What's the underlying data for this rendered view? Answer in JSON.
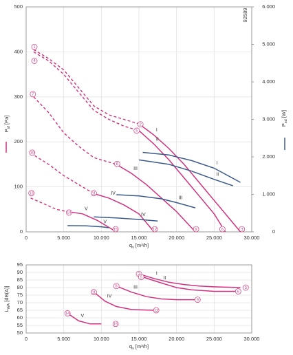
{
  "chart_data": [
    {
      "type": "line",
      "code": "92589",
      "xlabel": [
        "q",
        "v",
        " [m³/h]"
      ],
      "ylabel": [
        "P",
        "sf",
        " [Pa]"
      ],
      "y2label": [
        "P",
        "sd",
        " [W]"
      ],
      "xlim": [
        0,
        30000
      ],
      "xticks": [
        0,
        {
          "value": 5000,
          "label": "5.000"
        },
        {
          "value": 10000,
          "label": "10.000"
        },
        {
          "value": 15000,
          "label": "15.000"
        },
        {
          "value": 20000,
          "label": "20.000"
        },
        {
          "value": 25000,
          "label": "25.000"
        },
        {
          "value": 30000,
          "label": "30.000"
        }
      ],
      "ylim": [
        0,
        500
      ],
      "yticks": [
        0,
        100,
        200,
        300,
        400,
        500
      ],
      "y2lim": [
        0,
        6000
      ],
      "y2ticks": [
        0,
        {
          "value": 1000,
          "label": "1.000"
        },
        {
          "value": 2000,
          "label": "2.000"
        },
        {
          "value": 3000,
          "label": "3.000"
        },
        {
          "value": 4000,
          "label": "4.000"
        },
        {
          "value": 5000,
          "label": "5.000"
        },
        {
          "value": 6000,
          "label": "6.000"
        }
      ],
      "grid": true,
      "series": [
        {
          "name": "I",
          "color": "#d1317e",
          "stall_x": [
            1000,
            3000,
            5000,
            7000,
            9000,
            11000,
            13000,
            15000
          ],
          "stall_values": [
            405,
            385,
            360,
            320,
            280,
            260,
            250,
            240
          ],
          "x": [
            15000,
            17000,
            19000,
            21000,
            23000,
            25000,
            27000,
            28500
          ],
          "values": [
            240,
            215,
            185,
            150,
            110,
            70,
            30,
            0
          ]
        },
        {
          "name": "II",
          "color": "#d1317e",
          "stall_x": [
            1000,
            3000,
            5000,
            7000,
            9000,
            11000,
            13000,
            15000
          ],
          "stall_values": [
            400,
            380,
            350,
            310,
            270,
            250,
            235,
            225
          ],
          "x": [
            15000,
            17000,
            19000,
            21000,
            23000,
            25000,
            26500
          ],
          "values": [
            225,
            195,
            160,
            120,
            80,
            40,
            0
          ]
        },
        {
          "name": "III",
          "color": "#d1317e",
          "stall_x": [
            1000,
            3000,
            5000,
            7000,
            9000,
            12000
          ],
          "stall_values": [
            300,
            265,
            220,
            190,
            165,
            150
          ],
          "x": [
            12000,
            14000,
            16000,
            18000,
            20000,
            22500
          ],
          "values": [
            150,
            130,
            105,
            75,
            45,
            0
          ]
        },
        {
          "name": "IV",
          "color": "#d1317e",
          "stall_x": [
            600,
            3000,
            5000,
            7000,
            9000
          ],
          "stall_values": [
            175,
            150,
            125,
            105,
            85
          ],
          "x": [
            9000,
            11000,
            13000,
            15000,
            17000
          ],
          "values": [
            85,
            75,
            60,
            40,
            0
          ]
        },
        {
          "name": "V",
          "color": "#d1317e",
          "stall_x": [
            600,
            2000,
            4000,
            5500
          ],
          "stall_values": [
            75,
            65,
            50,
            45
          ],
          "x": [
            5500,
            7500,
            9500,
            11000,
            12000
          ],
          "values": [
            45,
            40,
            25,
            10,
            0
          ]
        },
        {
          "name": "I",
          "color": "#3a5a8c",
          "axis": "y2",
          "x": [
            15500,
            19000,
            22000,
            25000,
            28500
          ],
          "values": [
            2120,
            2050,
            1900,
            1700,
            1320
          ]
        },
        {
          "name": "II",
          "color": "#3a5a8c",
          "axis": "y2",
          "x": [
            15000,
            19000,
            22000,
            25000,
            27500
          ],
          "values": [
            1920,
            1800,
            1620,
            1400,
            1230
          ]
        },
        {
          "name": "III",
          "color": "#3a5a8c",
          "axis": "y2",
          "x": [
            12000,
            15000,
            18000,
            20000,
            22500
          ],
          "values": [
            990,
            960,
            880,
            780,
            640
          ]
        },
        {
          "name": "IV",
          "color": "#3a5a8c",
          "axis": "y2",
          "x": [
            9000,
            12000,
            15000,
            17500
          ],
          "values": [
            400,
            370,
            330,
            290
          ]
        },
        {
          "name": "V",
          "color": "#3a5a8c",
          "axis": "y2",
          "x": [
            5500,
            8000,
            10000,
            11000
          ],
          "values": [
            165,
            160,
            135,
            110
          ]
        }
      ],
      "points": [
        {
          "label": "1",
          "x": 1100,
          "y": 411
        },
        {
          "label": "4",
          "x": 1100,
          "y": 380
        },
        {
          "label": "7",
          "x": 900,
          "y": 306
        },
        {
          "label": "10",
          "x": 800,
          "y": 176
        },
        {
          "label": "13",
          "x": 700,
          "y": 86
        },
        {
          "label": "2",
          "x": 15200,
          "y": 239
        },
        {
          "label": "5",
          "x": 14700,
          "y": 225
        },
        {
          "label": "8",
          "x": 12100,
          "y": 151
        },
        {
          "label": "11",
          "x": 9000,
          "y": 86
        },
        {
          "label": "14",
          "x": 5700,
          "y": 43
        },
        {
          "label": "3",
          "x": 28700,
          "y": 6
        },
        {
          "label": "6",
          "x": 26100,
          "y": 6
        },
        {
          "label": "9",
          "x": 22600,
          "y": 6
        },
        {
          "label": "12",
          "x": 17100,
          "y": 6
        },
        {
          "label": "15",
          "x": 11900,
          "y": 6
        }
      ]
    },
    {
      "type": "line",
      "xlabel": [
        "q",
        "v",
        " [m³/h]"
      ],
      "ylabel": [
        "L",
        "WA",
        " [dB(A)]"
      ],
      "xlim": [
        0,
        30000
      ],
      "xticks": [
        0,
        {
          "value": 5000,
          "label": "5.000"
        },
        {
          "value": 10000,
          "label": "10.000"
        },
        {
          "value": 15000,
          "label": "15.000"
        },
        {
          "value": 20000,
          "label": "20.000"
        },
        {
          "value": 25000,
          "label": "25.000"
        },
        {
          "value": 30000,
          "label": "30.000"
        }
      ],
      "ylim": [
        50,
        95
      ],
      "yticks": [
        50,
        55,
        60,
        65,
        70,
        75,
        80,
        85,
        90,
        95
      ],
      "grid": true,
      "series": [
        {
          "name": "I",
          "color": "#d1317e",
          "x": [
            15000,
            17000,
            19000,
            21000,
            23000,
            25000,
            28500
          ],
          "values": [
            89,
            86,
            83.5,
            82,
            81,
            80.5,
            80
          ]
        },
        {
          "name": "II",
          "color": "#d1317e",
          "x": [
            15500,
            18000,
            20000,
            22000,
            25000,
            28000
          ],
          "values": [
            87,
            83,
            80,
            78.5,
            77.5,
            77.5
          ]
        },
        {
          "name": "III",
          "color": "#d1317e",
          "x": [
            12000,
            14000,
            16000,
            18000,
            20000,
            22500
          ],
          "values": [
            81,
            77,
            74,
            72.5,
            72,
            72
          ]
        },
        {
          "name": "IV",
          "color": "#d1317e",
          "x": [
            9000,
            10500,
            12000,
            14000,
            17000
          ],
          "values": [
            77,
            71,
            67.5,
            65.5,
            65
          ]
        },
        {
          "name": "V",
          "color": "#d1317e",
          "x": [
            5500,
            7000,
            8500,
            10000
          ],
          "values": [
            63,
            58,
            56,
            56
          ]
        }
      ],
      "points": [
        {
          "label": "2",
          "x": 15000,
          "y": 89
        },
        {
          "label": "3",
          "x": 29200,
          "y": 80
        },
        {
          "label": "5",
          "x": 15300,
          "y": 87
        },
        {
          "label": "6",
          "x": 28200,
          "y": 77.5
        },
        {
          "label": "8",
          "x": 12000,
          "y": 81
        },
        {
          "label": "9",
          "x": 22800,
          "y": 72
        },
        {
          "label": "11",
          "x": 9000,
          "y": 77
        },
        {
          "label": "12",
          "x": 17300,
          "y": 65
        },
        {
          "label": "14",
          "x": 5500,
          "y": 63
        },
        {
          "label": "15",
          "x": 11900,
          "y": 56
        }
      ]
    }
  ]
}
